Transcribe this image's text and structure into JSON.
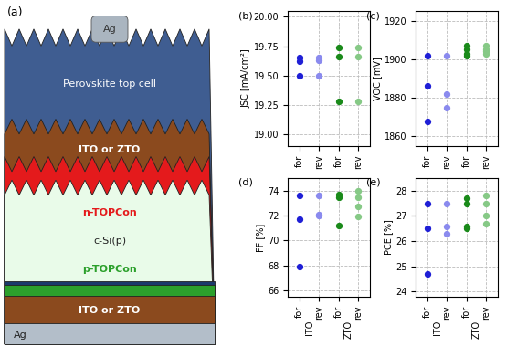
{
  "diagram": {
    "label": "(a)",
    "layers": [
      {
        "label": "Ag",
        "text_color": "#333333"
      },
      {
        "label": "Perovskite top cell",
        "text_color": "#ffffff"
      },
      {
        "label": "ITO or ZTO",
        "text_color": "#ffffff"
      },
      {
        "label": "n-TOPCon",
        "text_color": "#e41a1c"
      },
      {
        "label": "c-Si(p)",
        "text_color": "#222222"
      },
      {
        "label": "p-TOPCon",
        "text_color": "#2ca02c"
      },
      {
        "label": "ITO or ZTO",
        "text_color": "#ffffff"
      },
      {
        "label": "Ag",
        "text_color": "#222222"
      }
    ]
  },
  "chart_data": [
    {
      "type": "scatter",
      "title": "(b)",
      "y_label": "JSC [mA/cm²]",
      "marker": "o",
      "grid": true,
      "categories": [
        "for",
        "rev",
        "for",
        "rev"
      ],
      "colors": [
        "#1f1fd6",
        "#8a8aee",
        "#1a8a1a",
        "#86c986"
      ],
      "values": [
        [
          19.65,
          19.62,
          19.5
        ],
        [
          19.65,
          19.63,
          19.5
        ],
        [
          19.74,
          19.66,
          19.28
        ],
        [
          19.74,
          19.66,
          19.28
        ]
      ],
      "ylim": [
        18.9,
        20.05
      ],
      "yticks": [
        {
          "value": 19.0,
          "label": "19.00"
        },
        {
          "value": 19.25,
          "label": "19.25"
        },
        {
          "value": 19.5,
          "label": "19.50"
        },
        {
          "value": 19.75,
          "label": "19.75"
        },
        {
          "value": 20.0,
          "label": "20.00"
        }
      ]
    },
    {
      "type": "scatter",
      "title": "(c)",
      "y_label": "VOC [mV]",
      "marker": "o",
      "grid": true,
      "categories": [
        "for",
        "rev",
        "for",
        "rev"
      ],
      "colors": [
        "#1f1fd6",
        "#8a8aee",
        "#1a8a1a",
        "#86c986"
      ],
      "values": [
        [
          1902,
          1886,
          1868
        ],
        [
          1902,
          1882,
          1875
        ],
        [
          1907,
          1905,
          1903,
          1902
        ],
        [
          1907,
          1905,
          1904,
          1903
        ]
      ],
      "ylim": [
        1855,
        1925
      ],
      "yticks": [
        1860,
        1880,
        1900,
        1920
      ]
    },
    {
      "type": "scatter",
      "title": "(d)",
      "y_label": "FF [%]",
      "marker": "o",
      "grid": true,
      "categories": [
        "for",
        "rev",
        "for",
        "rev"
      ],
      "group_labels": [
        "ITO",
        "ZTO"
      ],
      "colors": [
        "#1f1fd6",
        "#8a8aee",
        "#1a8a1a",
        "#86c986"
      ],
      "values": [
        [
          73.6,
          71.7,
          67.9
        ],
        [
          73.6,
          72.1,
          72.0
        ],
        [
          73.7,
          73.5,
          71.2
        ],
        [
          74.0,
          73.5,
          72.7,
          71.9
        ]
      ],
      "ylim": [
        65.5,
        75
      ],
      "yticks": [
        66,
        68,
        70,
        72,
        74
      ]
    },
    {
      "type": "scatter",
      "title": "(e)",
      "y_label": "PCE [%]",
      "marker": "o",
      "grid": true,
      "categories": [
        "for",
        "rev",
        "for",
        "rev"
      ],
      "group_labels": [
        "ITO",
        "ZTO"
      ],
      "colors": [
        "#1f1fd6",
        "#8a8aee",
        "#1a8a1a",
        "#86c986"
      ],
      "values": [
        [
          27.5,
          26.5,
          24.7
        ],
        [
          27.5,
          26.6,
          26.3
        ],
        [
          27.7,
          27.5,
          26.6,
          26.5
        ],
        [
          27.8,
          27.5,
          27.0,
          26.7
        ]
      ],
      "ylim": [
        23.8,
        28.5
      ],
      "yticks": [
        24,
        25,
        26,
        27,
        28
      ]
    }
  ]
}
